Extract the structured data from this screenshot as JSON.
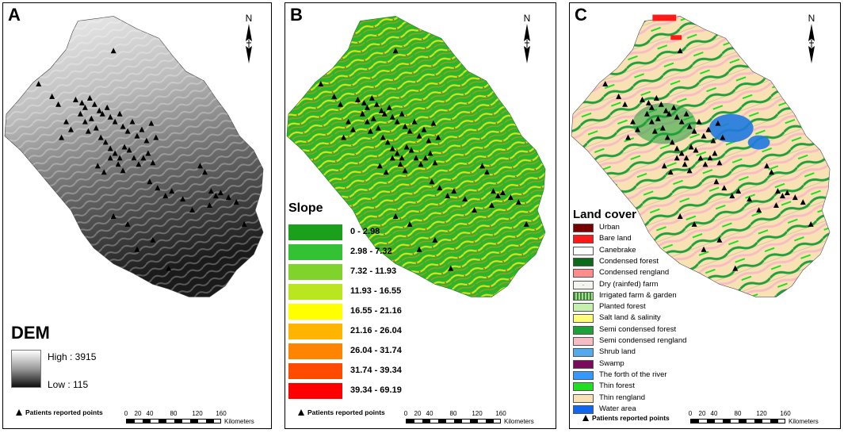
{
  "panels": [
    {
      "letter": "A",
      "legend_title": "DEM",
      "dem_high": "High : 3915",
      "dem_low": "Low : 115",
      "ramp_colors": [
        "#ffffff",
        "#0e0e0e"
      ],
      "points_label": "Patients reported points"
    },
    {
      "letter": "B",
      "legend_title": "Slope",
      "slope_classes": [
        {
          "label": "0 - 2.98",
          "color": "#1aa01a"
        },
        {
          "label": "2.98 - 7.32",
          "color": "#33c233"
        },
        {
          "label": "7.32 - 11.93",
          "color": "#7fd32a"
        },
        {
          "label": "11.93 - 16.55",
          "color": "#b9e61f"
        },
        {
          "label": "16.55 - 21.16",
          "color": "#ffff00"
        },
        {
          "label": "21.16 - 26.04",
          "color": "#ffb400"
        },
        {
          "label": "26.04 - 31.74",
          "color": "#ff8400"
        },
        {
          "label": "31.74 - 39.34",
          "color": "#ff4a00"
        },
        {
          "label": "39.34 - 69.19",
          "color": "#ff0000"
        }
      ],
      "points_label": "Patients reported points"
    },
    {
      "letter": "C",
      "legend_title": "Land cover",
      "landcover_classes": [
        {
          "label": "Urban",
          "color": "#7a0000"
        },
        {
          "label": "Bare land",
          "color": "#ff1a1a"
        },
        {
          "label": "Canebrake",
          "color": "#ffffff"
        },
        {
          "label": "Condensed forest",
          "color": "#0b6b1a"
        },
        {
          "label": "Condensed rengland",
          "color": "#ff8c8c"
        },
        {
          "label": "Dry (rainfed) farm",
          "color": "#f4f4ee"
        },
        {
          "label": "Irrigated farm & garden",
          "color": "#72c05a"
        },
        {
          "label": "Planted forest",
          "color": "#c6f0b0"
        },
        {
          "label": "Salt land & salinity",
          "color": "#ffff7a"
        },
        {
          "label": "Semi condensed forest",
          "color": "#1ea03a"
        },
        {
          "label": "Semi condensed rengland",
          "color": "#f8bcc4"
        },
        {
          "label": "Shrub land",
          "color": "#55aaee"
        },
        {
          "label": "Swamp",
          "color": "#7a0a5a"
        },
        {
          "label": "The forth of the river",
          "color": "#3399ff"
        },
        {
          "label": "Thin forest",
          "color": "#22dd22"
        },
        {
          "label": "Thin rengland",
          "color": "#f8e2b4"
        },
        {
          "label": "Water area",
          "color": "#1166ee"
        }
      ],
      "points_label": "Patients reported points"
    }
  ],
  "north_label": "N",
  "scale": {
    "ticks": [
      "0",
      "20",
      "40",
      "80",
      "120",
      "160"
    ],
    "tick_values": [
      0,
      20,
      40,
      80,
      120,
      160
    ],
    "unit": "Kilometers"
  }
}
